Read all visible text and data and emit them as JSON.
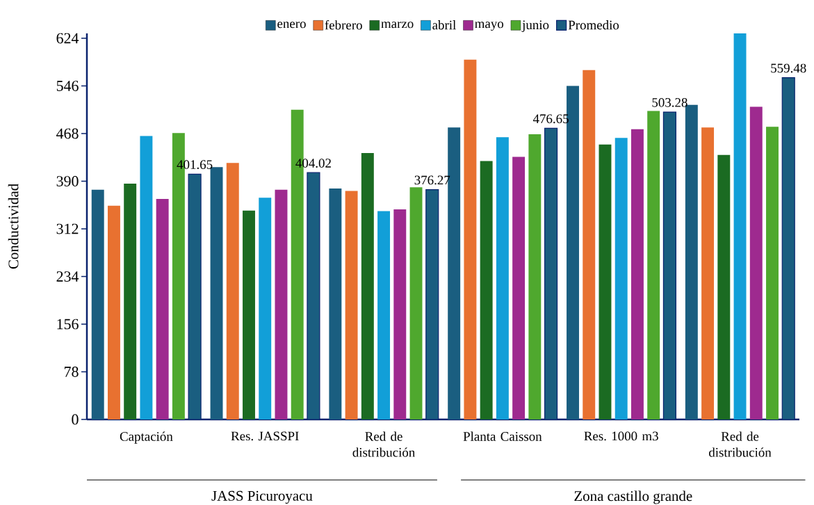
{
  "chart_data": {
    "type": "bar",
    "ylabel": "Conductividad",
    "categories": [
      "Captación",
      "Res. JASSPI",
      "Red de distribución",
      "Planta Caisson",
      "Res. 1000 m3",
      "Red de distribución"
    ],
    "series": [
      {
        "name": "enero",
        "color": "#1a5e80",
        "values": [
          376,
          413,
          378,
          478,
          546,
          515
        ]
      },
      {
        "name": "febrero",
        "color": "#e87130",
        "values": [
          350,
          420,
          374,
          589,
          572,
          478
        ]
      },
      {
        "name": "marzo",
        "color": "#1b6b22",
        "values": [
          386,
          342,
          436,
          423,
          450,
          433
        ]
      },
      {
        "name": "abril",
        "color": "#129fd8",
        "values": [
          464,
          363,
          341,
          462,
          461,
          632
        ]
      },
      {
        "name": "mayo",
        "color": "#9e2a8f",
        "values": [
          361,
          376,
          344,
          430,
          475,
          512
        ]
      },
      {
        "name": "junio",
        "color": "#4fa82e",
        "values": [
          469,
          507,
          380,
          467,
          505,
          479
        ]
      },
      {
        "name": "Promedio",
        "color": "#1a5e80",
        "values": [
          401.65,
          404.02,
          376.27,
          476.65,
          503.28,
          559.48
        ],
        "value_labels": [
          "401.65",
          "404.02",
          "376.27",
          "476.65",
          "503.28",
          "559.48"
        ]
      }
    ],
    "ylim": [
      0,
      632
    ],
    "yticks": [
      0,
      78,
      156,
      234,
      312,
      390,
      468,
      546,
      624
    ],
    "legend": "top",
    "grid": false,
    "annotations": [
      "JASS Picuroyacu",
      "Zona castillo grande"
    ]
  }
}
